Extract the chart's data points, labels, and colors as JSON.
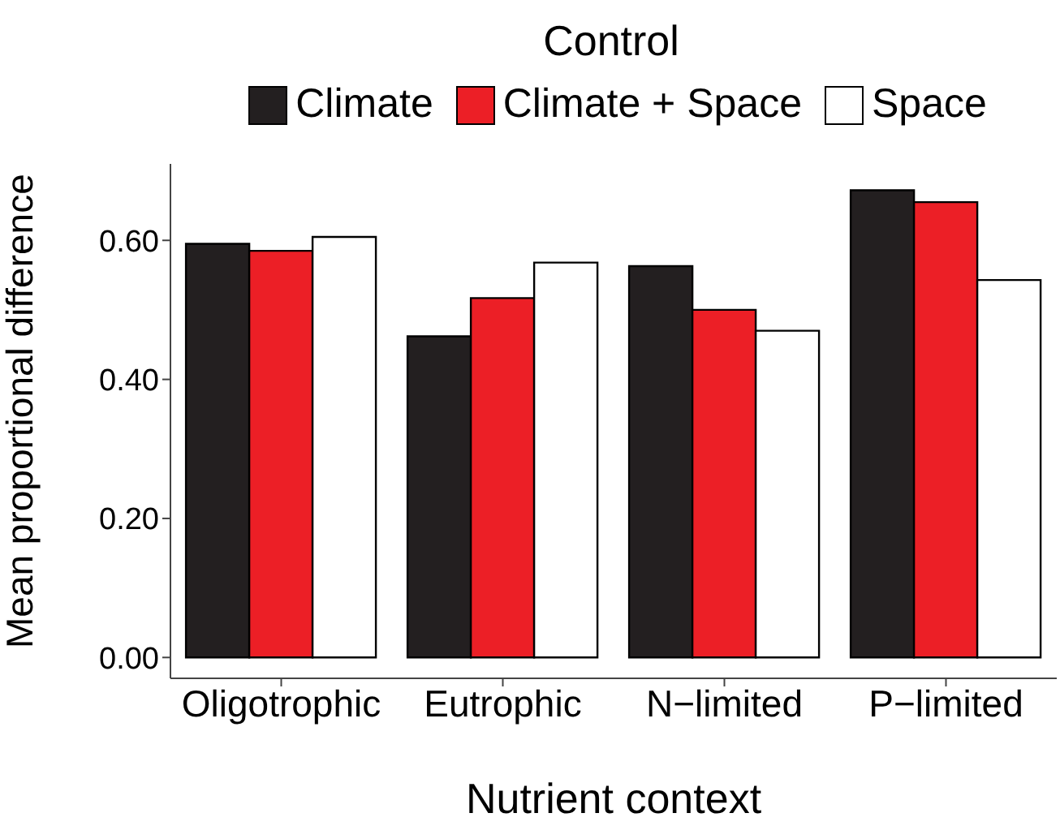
{
  "chart_data": {
    "type": "bar",
    "title": "Control",
    "xlabel": "Nutrient context",
    "ylabel": "Mean proportional difference",
    "categories": [
      "Oligotrophic",
      "Eutrophic",
      "N−limited",
      "P−limited"
    ],
    "series": [
      {
        "name": "Climate",
        "color": "#231f20",
        "values": [
          0.595,
          0.462,
          0.563,
          0.672
        ]
      },
      {
        "name": "Climate + Space",
        "color": "#ec1f26",
        "values": [
          0.585,
          0.517,
          0.5,
          0.655
        ]
      },
      {
        "name": "Space",
        "color": "#ffffff",
        "values": [
          0.605,
          0.568,
          0.47,
          0.543
        ]
      }
    ],
    "ylim": [
      -0.03,
      0.71
    ],
    "yticks": [
      {
        "value": 0,
        "label": "0.00"
      },
      {
        "value": 0.2,
        "label": "0.20"
      },
      {
        "value": 0.4,
        "label": "0.40"
      },
      {
        "value": 0.6,
        "label": "0.60"
      }
    ],
    "grid": false,
    "legend": "top"
  }
}
